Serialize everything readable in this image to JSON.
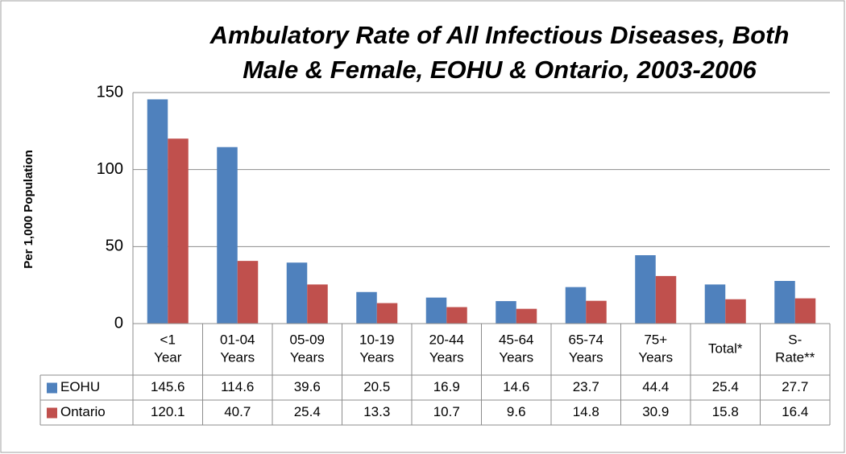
{
  "chart_data": {
    "type": "bar",
    "title": [
      "Ambulatory Rate of All Infectious Diseases, Both",
      "Male & Female, EOHU & Ontario, 2003-2006"
    ],
    "y_label": "Per 1,000 Population",
    "categories": [
      [
        "<1",
        "Year"
      ],
      [
        "01-04",
        "Years"
      ],
      [
        "05-09",
        "Years"
      ],
      [
        "10-19",
        "Years"
      ],
      [
        "20-44",
        "Years"
      ],
      [
        "45-64",
        "Years"
      ],
      [
        "65-74",
        "Years"
      ],
      [
        "75+",
        "Years"
      ],
      [
        "Total*"
      ],
      [
        "S-",
        "Rate**"
      ]
    ],
    "series": [
      {
        "name": "EOHU",
        "color": "#4f81bd",
        "values": [
          145.6,
          114.6,
          39.6,
          20.5,
          16.9,
          14.6,
          23.7,
          44.4,
          25.4,
          27.7
        ]
      },
      {
        "name": "Ontario",
        "color": "#c0504d",
        "values": [
          120.1,
          40.7,
          25.4,
          13.3,
          10.7,
          9.6,
          14.8,
          30.9,
          15.8,
          16.4
        ]
      }
    ],
    "ylim": [
      0,
      150
    ],
    "yticks": [
      0,
      50,
      100,
      150
    ],
    "grid": true,
    "data_table": true
  }
}
